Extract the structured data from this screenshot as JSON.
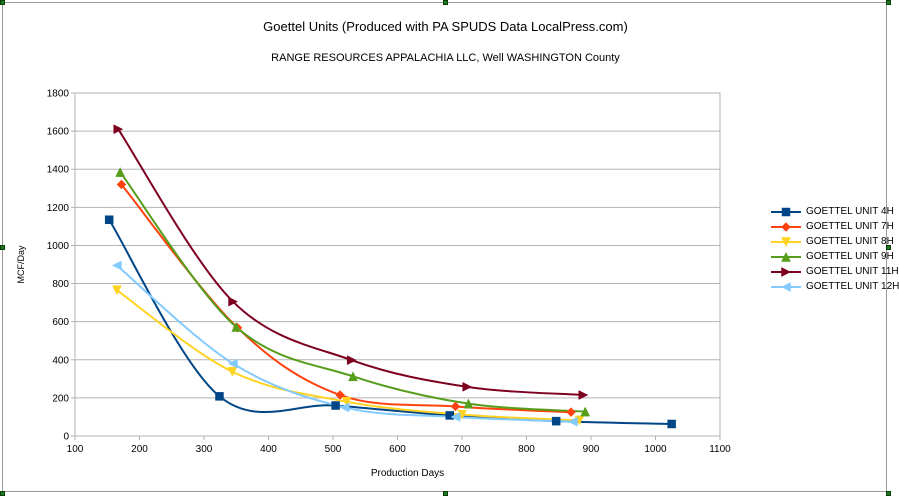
{
  "chart_data": {
    "type": "scatter",
    "title": "Goettel Units (Produced with PA SPUDS Data LocalPress.com)",
    "subtitle": "RANGE RESOURCES APPALACHIA LLC, Well  WASHINGTON County",
    "xlabel": "Production Days",
    "ylabel": "MCF/Day",
    "xlim": [
      100,
      1100
    ],
    "ylim": [
      0,
      1800
    ],
    "xticks": [
      100,
      200,
      300,
      400,
      500,
      600,
      700,
      800,
      900,
      1000,
      1100
    ],
    "yticks": [
      0,
      200,
      400,
      600,
      800,
      1000,
      1200,
      1400,
      1600,
      1800
    ],
    "grid": "horizontal",
    "smooth": true,
    "legend_position": "right",
    "series": [
      {
        "name": "GOETTEL UNIT 4H",
        "color": "#004586",
        "marker": "square",
        "points": [
          [
            153,
            1135
          ],
          [
            324,
            208
          ],
          [
            504,
            160
          ],
          [
            681,
            108
          ],
          [
            846,
            78
          ],
          [
            1025,
            63
          ]
        ]
      },
      {
        "name": "GOETTEL UNIT 7H",
        "color": "#ff420e",
        "marker": "diamond",
        "points": [
          [
            172,
            1320
          ],
          [
            352,
            568
          ],
          [
            511,
            215
          ],
          [
            690,
            155
          ],
          [
            869,
            125
          ]
        ]
      },
      {
        "name": "GOETTEL UNIT 8H",
        "color": "#ffd320",
        "marker": "triangle-down",
        "points": [
          [
            165,
            765
          ],
          [
            344,
            337
          ],
          [
            521,
            180
          ],
          [
            700,
            112
          ],
          [
            882,
            82
          ]
        ]
      },
      {
        "name": "GOETTEL UNIT 9H",
        "color": "#579d1c",
        "marker": "triangle-up",
        "points": [
          [
            170,
            1385
          ],
          [
            350,
            572
          ],
          [
            531,
            313
          ],
          [
            710,
            170
          ],
          [
            891,
            128
          ]
        ]
      },
      {
        "name": "GOETTEL UNIT 11H",
        "color": "#7e0021",
        "marker": "triangle-right",
        "points": [
          [
            167,
            1610
          ],
          [
            345,
            705
          ],
          [
            529,
            398
          ],
          [
            708,
            258
          ],
          [
            888,
            215
          ]
        ]
      },
      {
        "name": "GOETTEL UNIT 12H",
        "color": "#83caff",
        "marker": "triangle-left",
        "points": [
          [
            165,
            895
          ],
          [
            345,
            380
          ],
          [
            518,
            150
          ],
          [
            690,
            100
          ],
          [
            872,
            75
          ]
        ]
      }
    ]
  }
}
